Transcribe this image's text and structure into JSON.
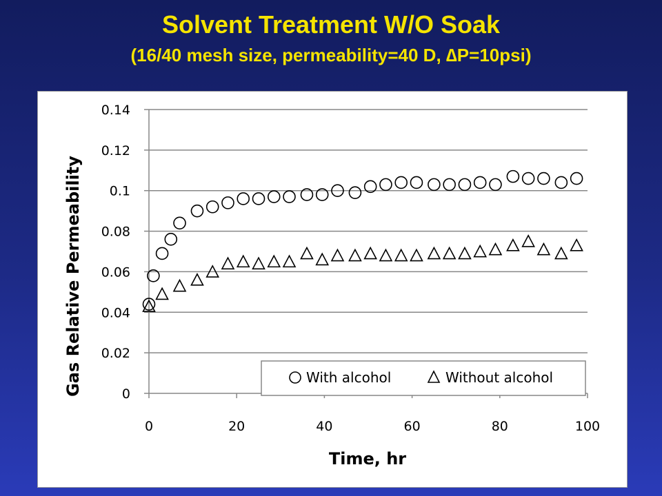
{
  "slide": {
    "title": "Solvent Treatment W/O Soak",
    "subtitle": "(16/40 mesh size, permeability=40 D, ∆P=10psi)"
  },
  "colors": {
    "background": "#1d2a86",
    "title": "#f5e400",
    "plot_background": "#ffffff",
    "gridline": "#878787",
    "marker": "#000000"
  },
  "chart_data": {
    "type": "scatter",
    "title": "",
    "xlabel": "Time, hr",
    "ylabel": "Gas Relative Permeability",
    "xlim": [
      0,
      100
    ],
    "ylim": [
      0,
      0.14
    ],
    "x_ticks": [
      "0",
      "20",
      "40",
      "60",
      "80",
      "100"
    ],
    "y_ticks": [
      "0",
      "0.02",
      "0.04",
      "0.06",
      "0.08",
      "0.1",
      "0.12",
      "0.14"
    ],
    "grid": "horizontal",
    "legend_position": "bottom-right",
    "series": [
      {
        "name": "With alcohol",
        "marker": "circle",
        "points": [
          [
            0,
            0.044
          ],
          [
            1,
            0.058
          ],
          [
            3,
            0.069
          ],
          [
            5,
            0.076
          ],
          [
            7,
            0.084
          ],
          [
            11,
            0.09
          ],
          [
            14.5,
            0.092
          ],
          [
            18,
            0.094
          ],
          [
            21.5,
            0.096
          ],
          [
            25,
            0.096
          ],
          [
            28.5,
            0.097
          ],
          [
            32,
            0.097
          ],
          [
            36,
            0.098
          ],
          [
            39.5,
            0.098
          ],
          [
            43,
            0.1
          ],
          [
            47,
            0.099
          ],
          [
            50.5,
            0.102
          ],
          [
            54,
            0.103
          ],
          [
            57.5,
            0.104
          ],
          [
            61,
            0.104
          ],
          [
            65,
            0.103
          ],
          [
            68.5,
            0.103
          ],
          [
            72,
            0.103
          ],
          [
            75.5,
            0.104
          ],
          [
            79,
            0.103
          ],
          [
            83,
            0.107
          ],
          [
            86.5,
            0.106
          ],
          [
            90,
            0.106
          ],
          [
            94,
            0.104
          ],
          [
            97.5,
            0.106
          ]
        ]
      },
      {
        "name": "Without alcohol",
        "marker": "triangle",
        "points": [
          [
            0,
            0.043
          ],
          [
            3,
            0.049
          ],
          [
            7,
            0.053
          ],
          [
            11,
            0.056
          ],
          [
            14.5,
            0.06
          ],
          [
            18,
            0.064
          ],
          [
            21.5,
            0.065
          ],
          [
            25,
            0.064
          ],
          [
            28.5,
            0.065
          ],
          [
            32,
            0.065
          ],
          [
            36,
            0.069
          ],
          [
            39.5,
            0.066
          ],
          [
            43,
            0.068
          ],
          [
            47,
            0.068
          ],
          [
            50.5,
            0.069
          ],
          [
            54,
            0.068
          ],
          [
            57.5,
            0.068
          ],
          [
            61,
            0.068
          ],
          [
            65,
            0.069
          ],
          [
            68.5,
            0.069
          ],
          [
            72,
            0.069
          ],
          [
            75.5,
            0.07
          ],
          [
            79,
            0.071
          ],
          [
            83,
            0.073
          ],
          [
            86.5,
            0.075
          ],
          [
            90,
            0.071
          ],
          [
            94,
            0.069
          ],
          [
            97.5,
            0.073
          ]
        ]
      }
    ]
  }
}
